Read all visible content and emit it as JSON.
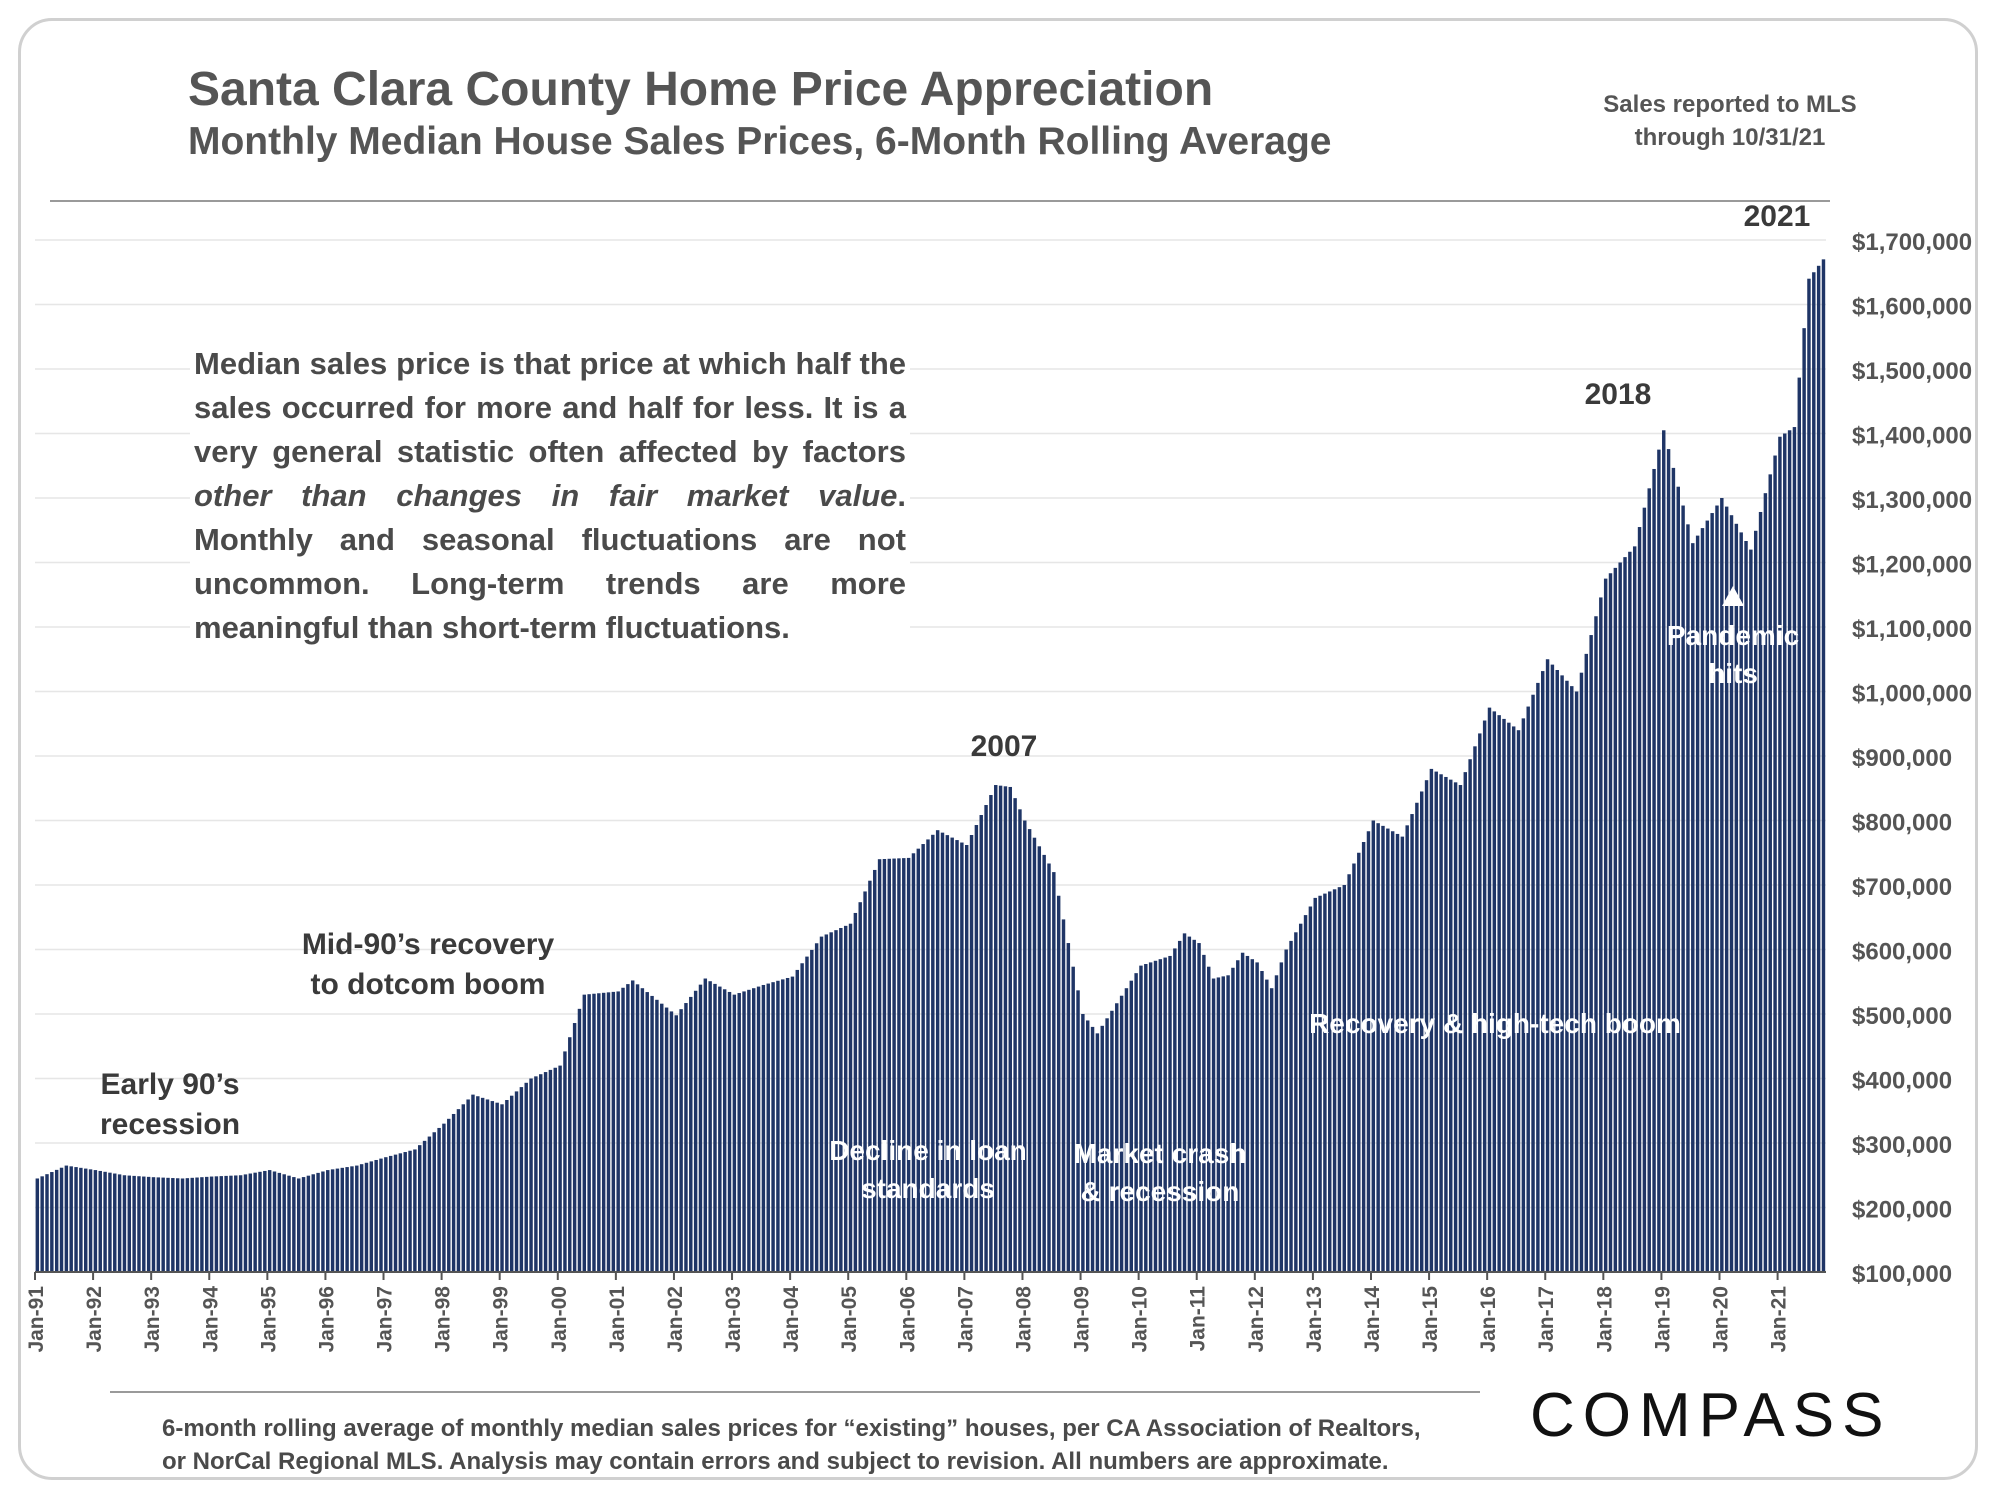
{
  "header": {
    "title": "Santa Clara County Home Price Appreciation",
    "subtitle": "Monthly Median House Sales Prices, 6-Month Rolling Average",
    "mls_note_line1": "Sales reported to MLS",
    "mls_note_line2": "through 10/31/21"
  },
  "explanation": {
    "part1": "Median sales price is that price at which half the sales occurred for more and half for less. It is a very general statistic often affected by factors ",
    "part2": "other than changes in fair market value",
    "part3": ". Monthly and seasonal fluctuations are not uncommon. Long-term trends are more meaningful than short-term fluctuations."
  },
  "footnote": {
    "line1": "6-month rolling average of monthly median sales prices for “existing” houses, per CA Association of Realtors,",
    "line2": "or NorCal Regional MLS.  Analysis may contain errors and subject to revision. All numbers are approximate."
  },
  "logo": {
    "text": "COMPASS"
  },
  "colors": {
    "bar": "#1f3566",
    "grid": "#e6e6e6",
    "text": "#444444"
  },
  "chart_data": {
    "type": "bar",
    "title": "Santa Clara County Home Price Appreciation",
    "subtitle": "Monthly Median House Sales Prices, 6-Month Rolling Average",
    "x_start": "Jan-91",
    "x_end": "Oct-21",
    "frequency": "monthly",
    "ylim": [
      100000,
      1700000
    ],
    "grid": true,
    "x_ticks": [
      "Jan-91",
      "Jan-92",
      "Jan-93",
      "Jan-94",
      "Jan-95",
      "Jan-96",
      "Jan-97",
      "Jan-98",
      "Jan-99",
      "Jan-00",
      "Jan-01",
      "Jan-02",
      "Jan-03",
      "Jan-04",
      "Jan-05",
      "Jan-06",
      "Jan-07",
      "Jan-08",
      "Jan-09",
      "Jan-10",
      "Jan-11",
      "Jan-12",
      "Jan-13",
      "Jan-14",
      "Jan-15",
      "Jan-16",
      "Jan-17",
      "Jan-18",
      "Jan-19",
      "Jan-20",
      "Jan-21"
    ],
    "y_ticks": [
      "$100,000",
      "$200,000",
      "$300,000",
      "$400,000",
      "$500,000",
      "$600,000",
      "$700,000",
      "$800,000",
      "$900,000",
      "$1,000,000",
      "$1,100,000",
      "$1,200,000",
      "$1,300,000",
      "$1,400,000",
      "$1,500,000",
      "$1,600,000",
      "$1,700,000"
    ],
    "y_tick_values": [
      100000,
      200000,
      300000,
      400000,
      500000,
      600000,
      700000,
      800000,
      900000,
      1000000,
      1100000,
      1200000,
      1300000,
      1400000,
      1500000,
      1600000,
      1700000
    ],
    "anchors": [
      [
        "Jan-91",
        245000
      ],
      [
        "Jul-91",
        265000
      ],
      [
        "Jan-92",
        258000
      ],
      [
        "Jul-92",
        250000
      ],
      [
        "Jan-93",
        247000
      ],
      [
        "Jul-93",
        245000
      ],
      [
        "Jan-94",
        248000
      ],
      [
        "Jul-94",
        250000
      ],
      [
        "Jan-95",
        258000
      ],
      [
        "Jul-95",
        245000
      ],
      [
        "Jan-96",
        258000
      ],
      [
        "Jul-96",
        265000
      ],
      [
        "Jan-97",
        278000
      ],
      [
        "Jul-97",
        290000
      ],
      [
        "Jan-98",
        330000
      ],
      [
        "Jul-98",
        375000
      ],
      [
        "Jan-99",
        360000
      ],
      [
        "Jul-99",
        400000
      ],
      [
        "Jan-00",
        420000
      ],
      [
        "Jun-00",
        530000
      ],
      [
        "Jan-01",
        535000
      ],
      [
        "Apr-01",
        552000
      ],
      [
        "Jan-02",
        498000
      ],
      [
        "Jul-02",
        555000
      ],
      [
        "Jan-03",
        530000
      ],
      [
        "Jul-03",
        545000
      ],
      [
        "Jan-04",
        558000
      ],
      [
        "Jul-04",
        620000
      ],
      [
        "Jan-05",
        640000
      ],
      [
        "Jul-05",
        740000
      ],
      [
        "Jan-06",
        742000
      ],
      [
        "Jul-06",
        785000
      ],
      [
        "Jan-07",
        762000
      ],
      [
        "Jul-07",
        855000
      ],
      [
        "Oct-07",
        852000
      ],
      [
        "Jan-08",
        800000
      ],
      [
        "Jul-08",
        720000
      ],
      [
        "Jan-09",
        500000
      ],
      [
        "Apr-09",
        470000
      ],
      [
        "Jan-10",
        575000
      ],
      [
        "Jul-10",
        590000
      ],
      [
        "Oct-10",
        625000
      ],
      [
        "Jan-11",
        610000
      ],
      [
        "Apr-11",
        555000
      ],
      [
        "Jul-11",
        560000
      ],
      [
        "Oct-11",
        595000
      ],
      [
        "Jan-12",
        580000
      ],
      [
        "Apr-12",
        540000
      ],
      [
        "Jul-12",
        600000
      ],
      [
        "Jan-13",
        680000
      ],
      [
        "Jul-13",
        700000
      ],
      [
        "Jan-14",
        800000
      ],
      [
        "Jul-14",
        775000
      ],
      [
        "Jan-15",
        880000
      ],
      [
        "Jul-15",
        855000
      ],
      [
        "Jan-16",
        975000
      ],
      [
        "Jul-16",
        940000
      ],
      [
        "Jan-17",
        1050000
      ],
      [
        "Jul-17",
        1000000
      ],
      [
        "Jan-18",
        1175000
      ],
      [
        "Jul-18",
        1225000
      ],
      [
        "Jan-19",
        1405000
      ],
      [
        "Jul-19",
        1230000
      ],
      [
        "Jan-20",
        1300000
      ],
      [
        "Jul-20",
        1220000
      ],
      [
        "Jan-21",
        1395000
      ],
      [
        "Apr-21",
        1410000
      ],
      [
        "Jul-21",
        1640000
      ],
      [
        "Oct-21",
        1670000
      ]
    ],
    "annotations": [
      {
        "id": "early-90s",
        "text": [
          "Early 90’s",
          "recession"
        ]
      },
      {
        "id": "mid-90s",
        "text": [
          "Mid-90’s recovery",
          "to dotcom boom"
        ]
      },
      {
        "id": "peak-2007",
        "text": [
          "2007"
        ]
      },
      {
        "id": "peak-2018",
        "text": [
          "2018"
        ]
      },
      {
        "id": "peak-2021",
        "text": [
          "2021"
        ]
      },
      {
        "id": "decline-loan",
        "text": [
          "Decline in loan",
          "standards"
        ]
      },
      {
        "id": "market-crash",
        "text": [
          "Market crash",
          "& recession"
        ]
      },
      {
        "id": "recovery-boom",
        "text": [
          "Recovery & high-tech boom"
        ]
      },
      {
        "id": "pandemic",
        "text": [
          "Pandemic",
          "hits"
        ]
      }
    ]
  }
}
